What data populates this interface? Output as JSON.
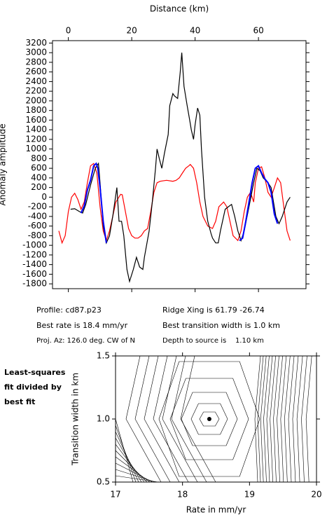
{
  "chart_data": [
    {
      "type": "line",
      "x_label": "Distance (km)",
      "y_label": "Anomaly amplitude",
      "xlim": [
        -5,
        75
      ],
      "ylim": [
        -1900,
        3250
      ],
      "xticks": [
        0,
        20,
        40,
        60
      ],
      "yticks": [
        -1800,
        -1600,
        -1400,
        -1200,
        -1000,
        -800,
        -600,
        -400,
        -200,
        0,
        200,
        400,
        600,
        800,
        1000,
        1200,
        1400,
        1600,
        1800,
        2000,
        2200,
        2400,
        2600,
        2800,
        3000,
        3200
      ],
      "series": [
        {
          "color": "#ff0000",
          "x": [
            -3,
            -2,
            -1,
            0,
            1,
            2,
            3,
            4,
            5,
            6,
            7,
            8,
            9,
            10,
            11,
            12,
            13,
            14,
            15,
            16.5,
            17,
            18,
            19,
            20,
            21,
            22,
            23,
            24,
            25,
            26,
            27,
            28,
            29,
            31,
            33,
            34,
            35,
            36,
            37,
            38,
            38.5,
            39.5,
            40.5,
            41.5,
            42.5,
            44,
            45.5,
            46.5,
            47.5,
            49,
            50,
            51,
            52,
            53.5,
            54.5,
            55.5,
            56.5,
            57.5,
            58.5,
            59,
            60,
            61,
            62,
            63,
            64,
            65,
            66,
            67,
            68,
            69,
            70
          ],
          "values": [
            -700,
            -950,
            -800,
            -300,
            0,
            80,
            -50,
            -250,
            -100,
            300,
            650,
            700,
            500,
            -200,
            -700,
            -900,
            -700,
            -400,
            -100,
            60,
            50,
            -300,
            -650,
            -800,
            -850,
            -850,
            -800,
            -700,
            -650,
            -300,
            100,
            300,
            330,
            350,
            330,
            350,
            400,
            500,
            600,
            650,
            680,
            600,
            300,
            -100,
            -400,
            -600,
            -650,
            -500,
            -200,
            -100,
            -200,
            -500,
            -800,
            -900,
            -700,
            -300,
            0,
            100,
            -100,
            300,
            600,
            630,
            400,
            100,
            0,
            200,
            400,
            300,
            -200,
            -700,
            -900
          ]
        },
        {
          "color": "#000000",
          "x": [
            0.7,
            2,
            3.5,
            4.5,
            5.5,
            7,
            8.5,
            9.5,
            10,
            11,
            12,
            13,
            14,
            15.3,
            16,
            16.8,
            17.5,
            18.5,
            19.3,
            20.5,
            21.5,
            22.5,
            23.5,
            24,
            25.5,
            26.5,
            27.5,
            28,
            28.7,
            29.5,
            30.3,
            31.5,
            32,
            33,
            33.5,
            34.5,
            35.3,
            35.8,
            36.5,
            37.5,
            38.3,
            38.8,
            39.5,
            40,
            40.8,
            41.5,
            42,
            43,
            44,
            45,
            45.5,
            46.5,
            47.3,
            48,
            49.5,
            50.5,
            51.5,
            52.5,
            53.5,
            54.5,
            55.5,
            57,
            58.5,
            59.5,
            60.5,
            61.5,
            63,
            64,
            65.5,
            66.5,
            67.5,
            69,
            70
          ],
          "values": [
            -250,
            -240,
            -300,
            -330,
            -150,
            250,
            600,
            700,
            300,
            -600,
            -950,
            -800,
            -400,
            200,
            -500,
            -500,
            -800,
            -1500,
            -1750,
            -1500,
            -1250,
            -1450,
            -1500,
            -1250,
            -700,
            -100,
            600,
            1000,
            800,
            600,
            900,
            1300,
            1900,
            2150,
            2100,
            2050,
            2600,
            3000,
            2300,
            1900,
            1600,
            1400,
            1200,
            1500,
            1850,
            1700,
            1000,
            0,
            -500,
            -750,
            -850,
            -950,
            -950,
            -700,
            -250,
            -200,
            -150,
            -400,
            -700,
            -900,
            -700,
            -200,
            300,
            600,
            550,
            400,
            300,
            200,
            -400,
            -550,
            -400,
            -100,
            0
          ]
        },
        {
          "color": "#0000ff",
          "x": [
            4,
            5,
            6,
            7,
            8,
            8.8,
            9.3,
            10,
            11,
            12,
            30,
            54,
            55,
            56,
            57,
            58,
            59,
            60,
            61,
            62,
            63,
            64,
            65,
            66
          ],
          "values": [
            -330,
            -180,
            150,
            350,
            650,
            700,
            600,
            200,
            -500,
            -950,
            null,
            -900,
            -850,
            -500,
            -100,
            300,
            600,
            650,
            500,
            380,
            300,
            100,
            -350,
            -550
          ]
        }
      ]
    },
    {
      "type": "scatter",
      "x_label": "Rate in mm/yr",
      "y_label": "Transition width in km",
      "xlim": [
        17,
        20
      ],
      "ylim": [
        0.5,
        1.5
      ],
      "xticks": [
        17,
        18,
        19,
        20
      ],
      "yticks": [
        0.5,
        {
          "value": 1,
          "label": "1.0"
        },
        1.5
      ],
      "series": [
        {
          "color": "#000000",
          "x": [
            18.4
          ],
          "values": [
            1.0
          ]
        }
      ]
    }
  ],
  "info": [
    "Profile: cd87.p23",
    "Ridge Xing is 61.79 -26.74",
    "Best rate is 18.4 mm/yr",
    "Best transition width is 1.0 km",
    "Proj. Az: 126.0 deg. CW of N",
    "Depth to source is    1.10 km"
  ],
  "side_note": [
    "Least-squares",
    "fit divided by",
    "best fit"
  ]
}
